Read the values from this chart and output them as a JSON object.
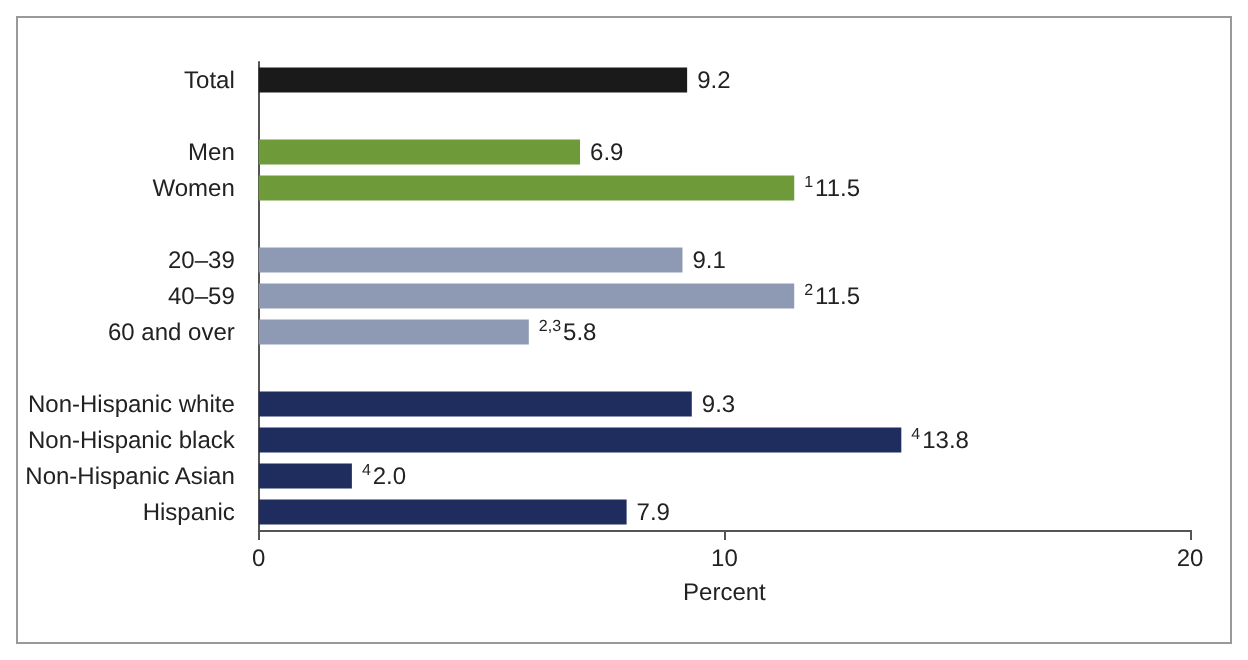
{
  "chart_data": {
    "type": "bar",
    "orientation": "horizontal",
    "xlabel": "Percent",
    "categories": [
      "Total",
      null,
      "Men",
      "Women",
      null,
      "20–39",
      "40–59",
      "60 and over",
      null,
      "Non-Hispanic white",
      "Non-Hispanic black",
      "Non-Hispanic Asian",
      "Hispanic"
    ],
    "values": [
      9.2,
      null,
      6.9,
      11.5,
      null,
      9.1,
      11.5,
      5.8,
      null,
      9.3,
      13.8,
      2.0,
      7.9
    ],
    "colors": [
      "#1a1a1a",
      null,
      "#6f9a3a",
      "#6f9a3a",
      null,
      "#8e9ab4",
      "#8e9ab4",
      "#8e9ab4",
      null,
      "#1f2d5e",
      "#1f2d5e",
      "#1f2d5e",
      "#1f2d5e"
    ],
    "value_labels": [
      "9.2",
      null,
      "6.9",
      "$^{1}$11.5",
      null,
      "9.1",
      "$^{2}$11.5",
      "$^{2,3}$5.8",
      null,
      "9.3",
      "$^{4}$13.8",
      "$^{4}$2.0",
      "7.9"
    ],
    "xlim": [
      0,
      20
    ],
    "xticks": [
      0,
      10,
      20
    ],
    "grid": false
  }
}
